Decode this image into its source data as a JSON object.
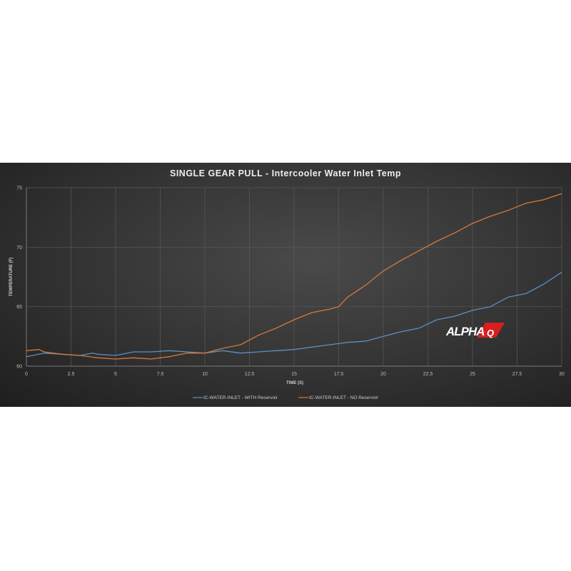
{
  "chart_data": {
    "type": "line",
    "title": "SINGLE GEAR PULL - Intercooler Water Inlet Temp",
    "xlabel": "TIME  (S)",
    "ylabel": "TEMPERATURE (F)",
    "xlim": [
      0,
      30
    ],
    "ylim": [
      60,
      75
    ],
    "xticks": [
      "0",
      "2.5",
      "5",
      "7.5",
      "10",
      "12.5",
      "15",
      "17.5",
      "20",
      "22.5",
      "25",
      "27.5",
      "30"
    ],
    "yticks": [
      "60",
      "65",
      "70",
      "75"
    ],
    "grid": true,
    "legend": "bottom",
    "series": [
      {
        "name": "IC-WATER-INLET - WITH Reservoir",
        "color": "#5b8fc4",
        "x": [
          0,
          1,
          2,
          3,
          3.7,
          4,
          5,
          6,
          7,
          8,
          9,
          10,
          11,
          12,
          13,
          14,
          15,
          16,
          17,
          18,
          19,
          20,
          21,
          22,
          23,
          24,
          25,
          26,
          27,
          28,
          29,
          30
        ],
        "y": [
          60.8,
          61.1,
          61.0,
          60.9,
          61.1,
          61.0,
          60.9,
          61.2,
          61.2,
          61.3,
          61.2,
          61.1,
          61.3,
          61.1,
          61.2,
          61.3,
          61.4,
          61.6,
          61.8,
          62.0,
          62.1,
          62.5,
          62.9,
          63.2,
          63.9,
          64.2,
          64.7,
          65.0,
          65.8,
          66.1,
          66.9,
          67.9
        ]
      },
      {
        "name": "IC-WATER-INLET - NO Reservoir",
        "color": "#d9773a",
        "x": [
          0,
          0.7,
          1,
          2,
          3,
          4,
          5,
          6,
          7,
          8,
          9,
          10,
          11,
          12,
          13,
          14,
          15,
          16,
          17,
          17.5,
          18,
          19,
          20,
          21,
          22,
          23,
          24,
          25,
          26,
          27,
          28,
          29,
          30
        ],
        "y": [
          61.3,
          61.4,
          61.2,
          61.0,
          60.9,
          60.7,
          60.6,
          60.7,
          60.6,
          60.8,
          61.1,
          61.1,
          61.5,
          61.8,
          62.6,
          63.2,
          63.9,
          64.5,
          64.8,
          65.0,
          65.8,
          66.8,
          68.0,
          68.9,
          69.7,
          70.5,
          71.2,
          72.0,
          72.6,
          73.1,
          73.7,
          74.0,
          74.5
        ]
      }
    ]
  },
  "logo": {
    "text": "ALPHA",
    "accent": "#d62020"
  }
}
